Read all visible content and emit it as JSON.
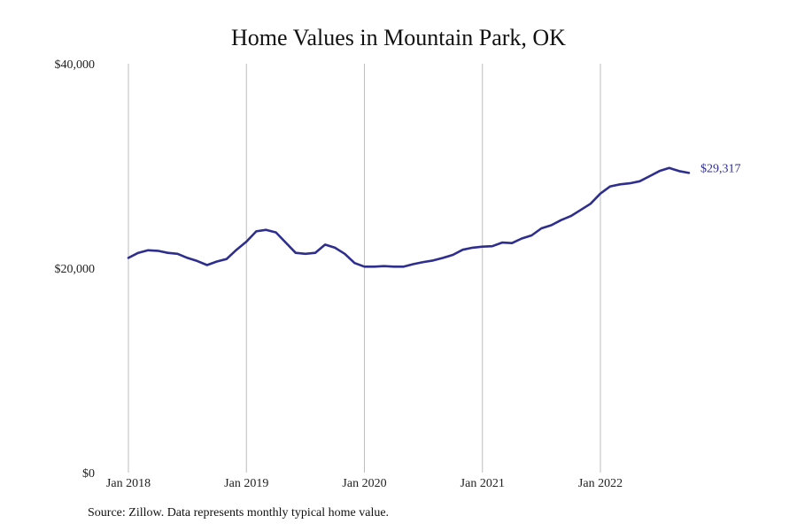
{
  "chart_data": {
    "type": "line",
    "title": "Home Values in Mountain Park, OK",
    "xlabel": "",
    "ylabel": "",
    "ylim": [
      0,
      40000
    ],
    "y_ticks": [
      {
        "value": 0,
        "label": "$0"
      },
      {
        "value": 20000,
        "label": "$20,000"
      },
      {
        "value": 40000,
        "label": "$40,000"
      }
    ],
    "x_ticks": [
      {
        "value": "2018-01",
        "label": "Jan 2018"
      },
      {
        "value": "2019-01",
        "label": "Jan 2019"
      },
      {
        "value": "2020-01",
        "label": "Jan 2020"
      },
      {
        "value": "2021-01",
        "label": "Jan 2021"
      },
      {
        "value": "2022-01",
        "label": "Jan 2022"
      }
    ],
    "vertical_grid": true,
    "horizontal_grid": false,
    "line_color": "#2e2e8f",
    "series": [
      {
        "x": [
          "2018-01",
          "2018-02",
          "2018-03",
          "2018-04",
          "2018-05",
          "2018-06",
          "2018-07",
          "2018-08",
          "2018-09",
          "2018-10",
          "2018-11",
          "2018-12",
          "2019-01",
          "2019-02",
          "2019-03",
          "2019-04",
          "2019-05",
          "2019-06",
          "2019-07",
          "2019-08",
          "2019-09",
          "2019-10",
          "2019-11",
          "2019-12",
          "2020-01",
          "2020-02",
          "2020-03",
          "2020-04",
          "2020-05",
          "2020-06",
          "2020-07",
          "2020-08",
          "2020-09",
          "2020-10",
          "2020-11",
          "2020-12",
          "2021-01",
          "2021-02",
          "2021-03",
          "2021-04",
          "2021-05",
          "2021-06",
          "2021-07",
          "2021-08",
          "2021-09",
          "2021-10",
          "2021-11",
          "2021-12",
          "2022-01",
          "2022-02",
          "2022-03",
          "2022-04",
          "2022-05",
          "2022-06",
          "2022-07",
          "2022-08",
          "2022-09",
          "2022-10"
        ],
        "values": [
          21000,
          21500,
          21750,
          21700,
          21500,
          21400,
          21000,
          20700,
          20300,
          20650,
          20900,
          21800,
          22600,
          23600,
          23750,
          23500,
          22500,
          21500,
          21400,
          21500,
          22300,
          22000,
          21400,
          20500,
          20150,
          20150,
          20200,
          20150,
          20150,
          20400,
          20600,
          20750,
          21000,
          21300,
          21800,
          22000,
          22100,
          22150,
          22500,
          22450,
          22900,
          23200,
          23900,
          24200,
          24700,
          25100,
          25700,
          26300,
          27300,
          28000,
          28200,
          28300,
          28500,
          29000,
          29500,
          29800,
          29500,
          29317
        ]
      }
    ],
    "end_label": "$29,317"
  },
  "source_note": "Source: Zillow. Data represents monthly typical home value."
}
